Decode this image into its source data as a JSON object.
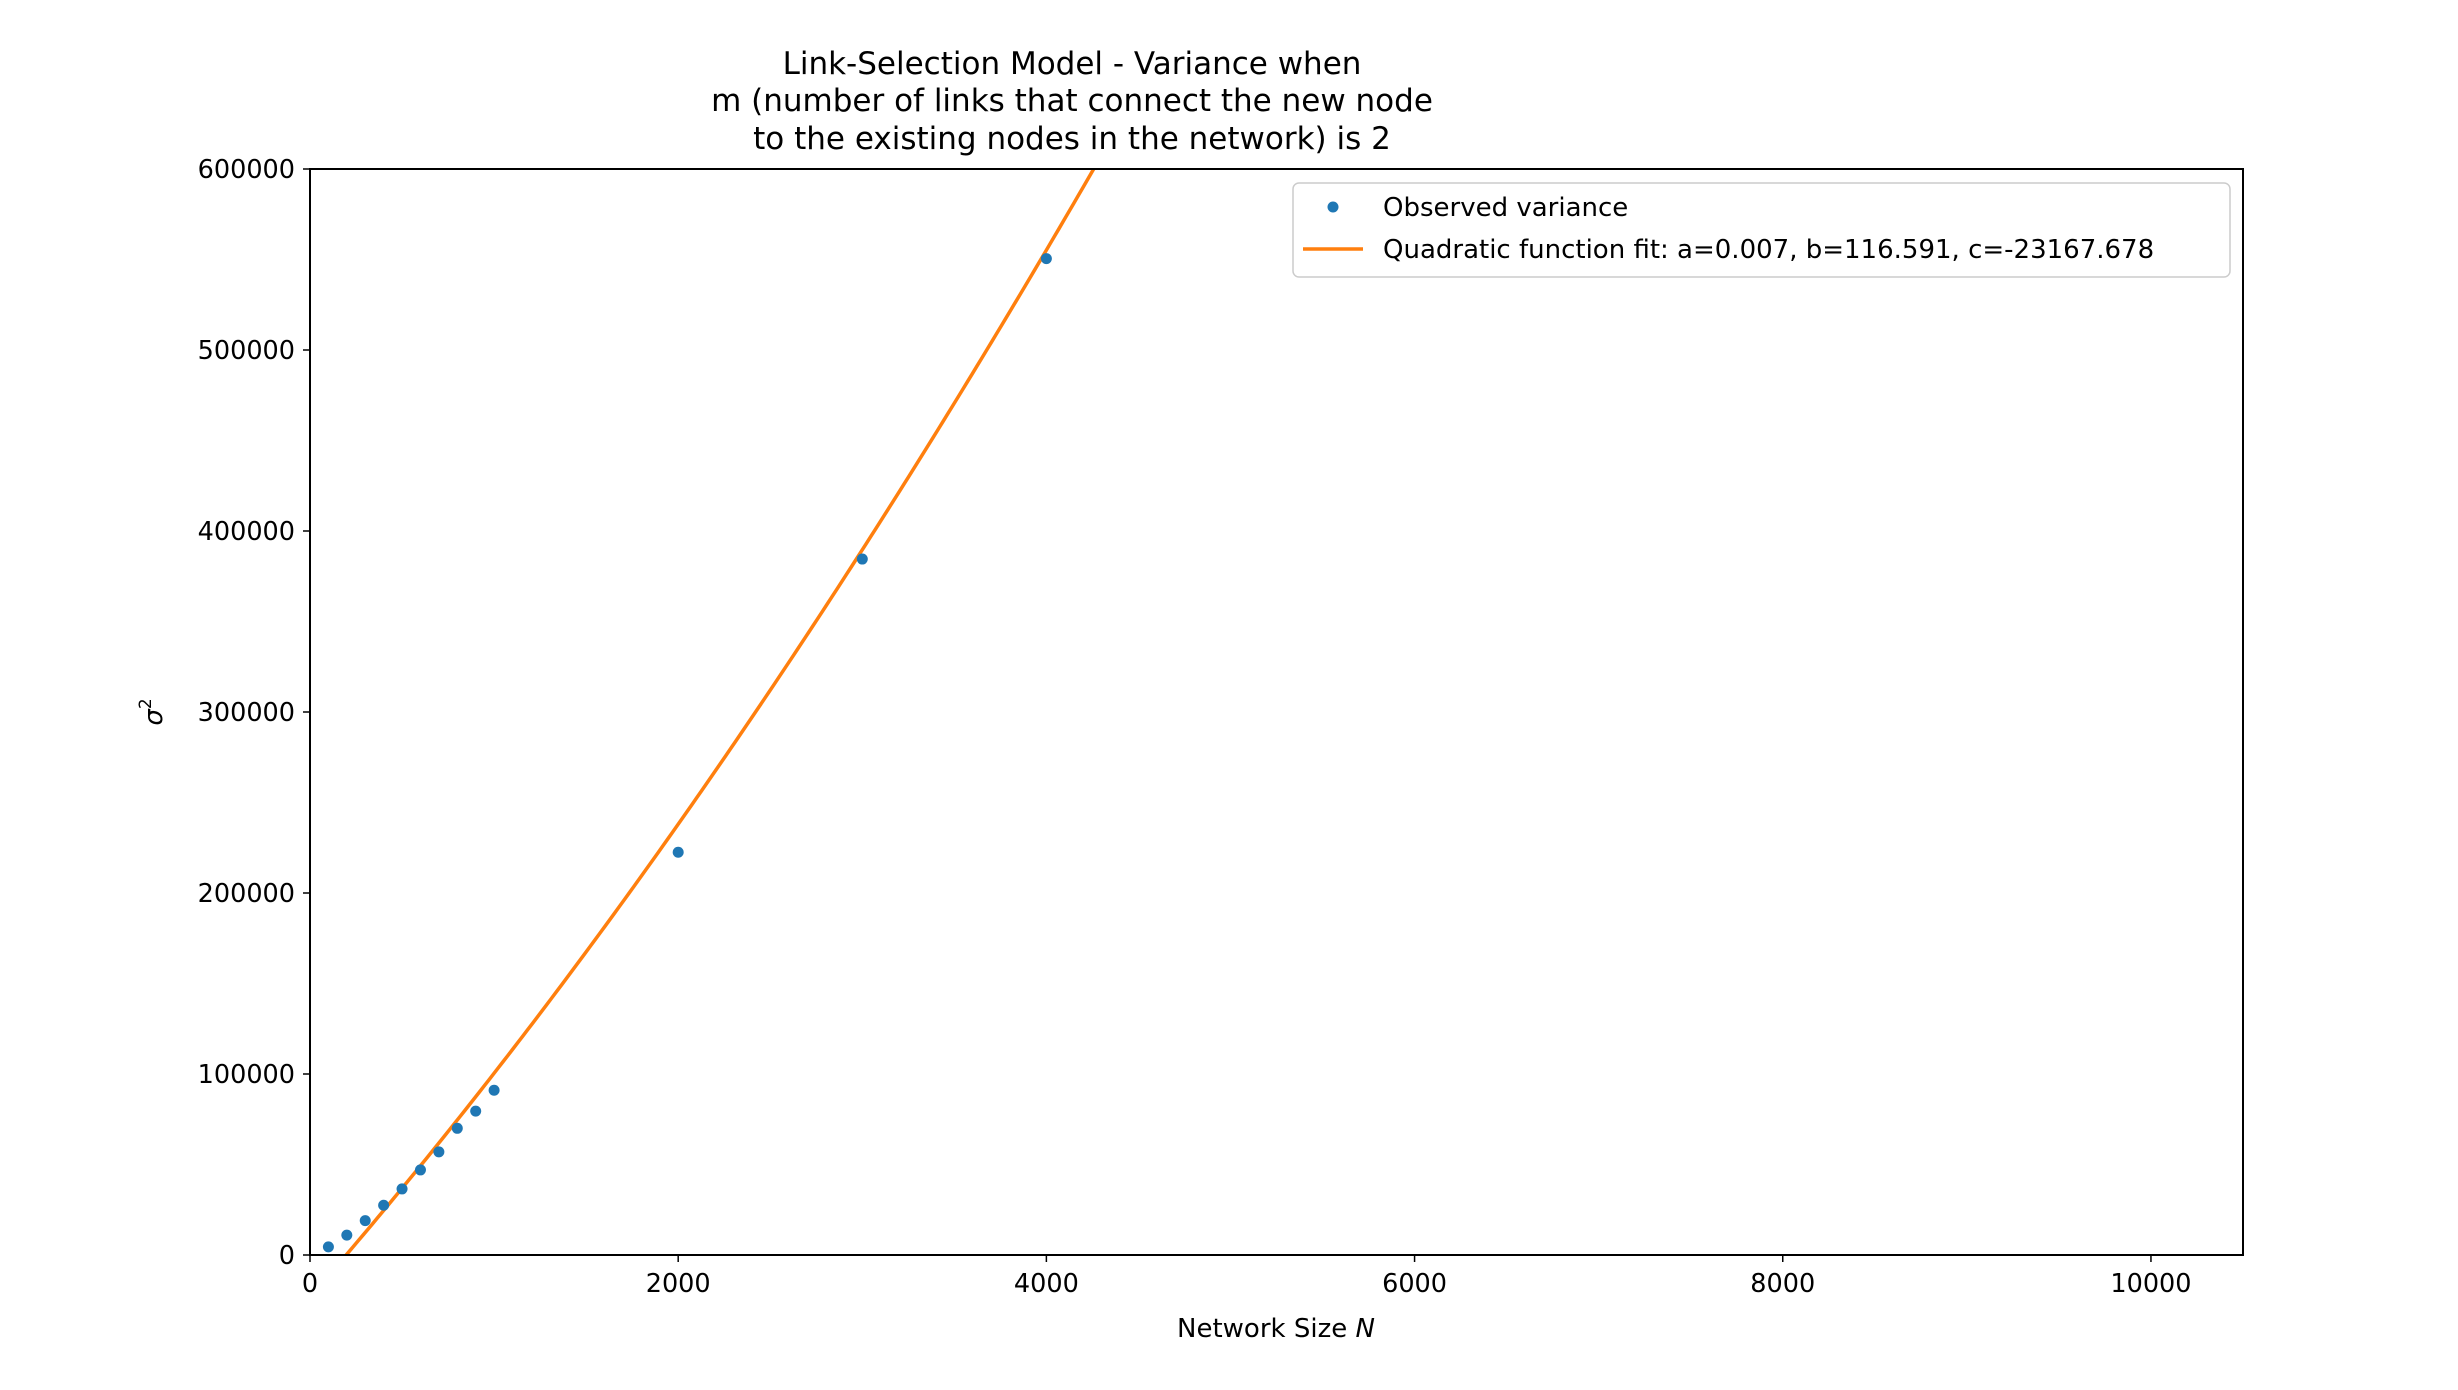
{
  "chart_data": {
    "type": "scatter",
    "title": [
      "Link-Selection Model - Variance when",
      "m (number of links that connect the new node",
      "to the existing nodes in the network) is 2"
    ],
    "xlabel": {
      "text": "Network Size",
      "symbol": "N"
    },
    "ylabel": {
      "base": "σ",
      "sup": "2"
    },
    "xlim": [
      0,
      10500
    ],
    "ylim": [
      0,
      600000
    ],
    "xticks": [
      0,
      2000,
      4000,
      6000,
      8000,
      10000
    ],
    "xtick_labels": [
      "0",
      "2000",
      "4000",
      "6000",
      "8000",
      "10000"
    ],
    "yticks": [
      0,
      100000,
      200000,
      300000,
      400000,
      500000,
      600000
    ],
    "ytick_labels": [
      "0",
      "100000",
      "200000",
      "300000",
      "400000",
      "500000",
      "600000"
    ],
    "grid": false,
    "legend_position": "top-right",
    "series": [
      {
        "name": "Observed variance",
        "kind": "scatter",
        "color": "#1f77b4",
        "x": [
          100,
          200,
          300,
          400,
          500,
          600,
          700,
          800,
          900,
          1000,
          2000,
          3000,
          4000
        ],
        "y": [
          4500,
          11000,
          19000,
          27500,
          36500,
          47000,
          57000,
          70000,
          79500,
          91000,
          222500,
          384500,
          550500
        ]
      },
      {
        "name": "Quadratic function fit: a=0.007, b=116.591, c=-23167.678",
        "kind": "line",
        "color": "#ff7f0e",
        "a": 0.007,
        "b": 116.591,
        "c": -23167.678
      }
    ]
  }
}
